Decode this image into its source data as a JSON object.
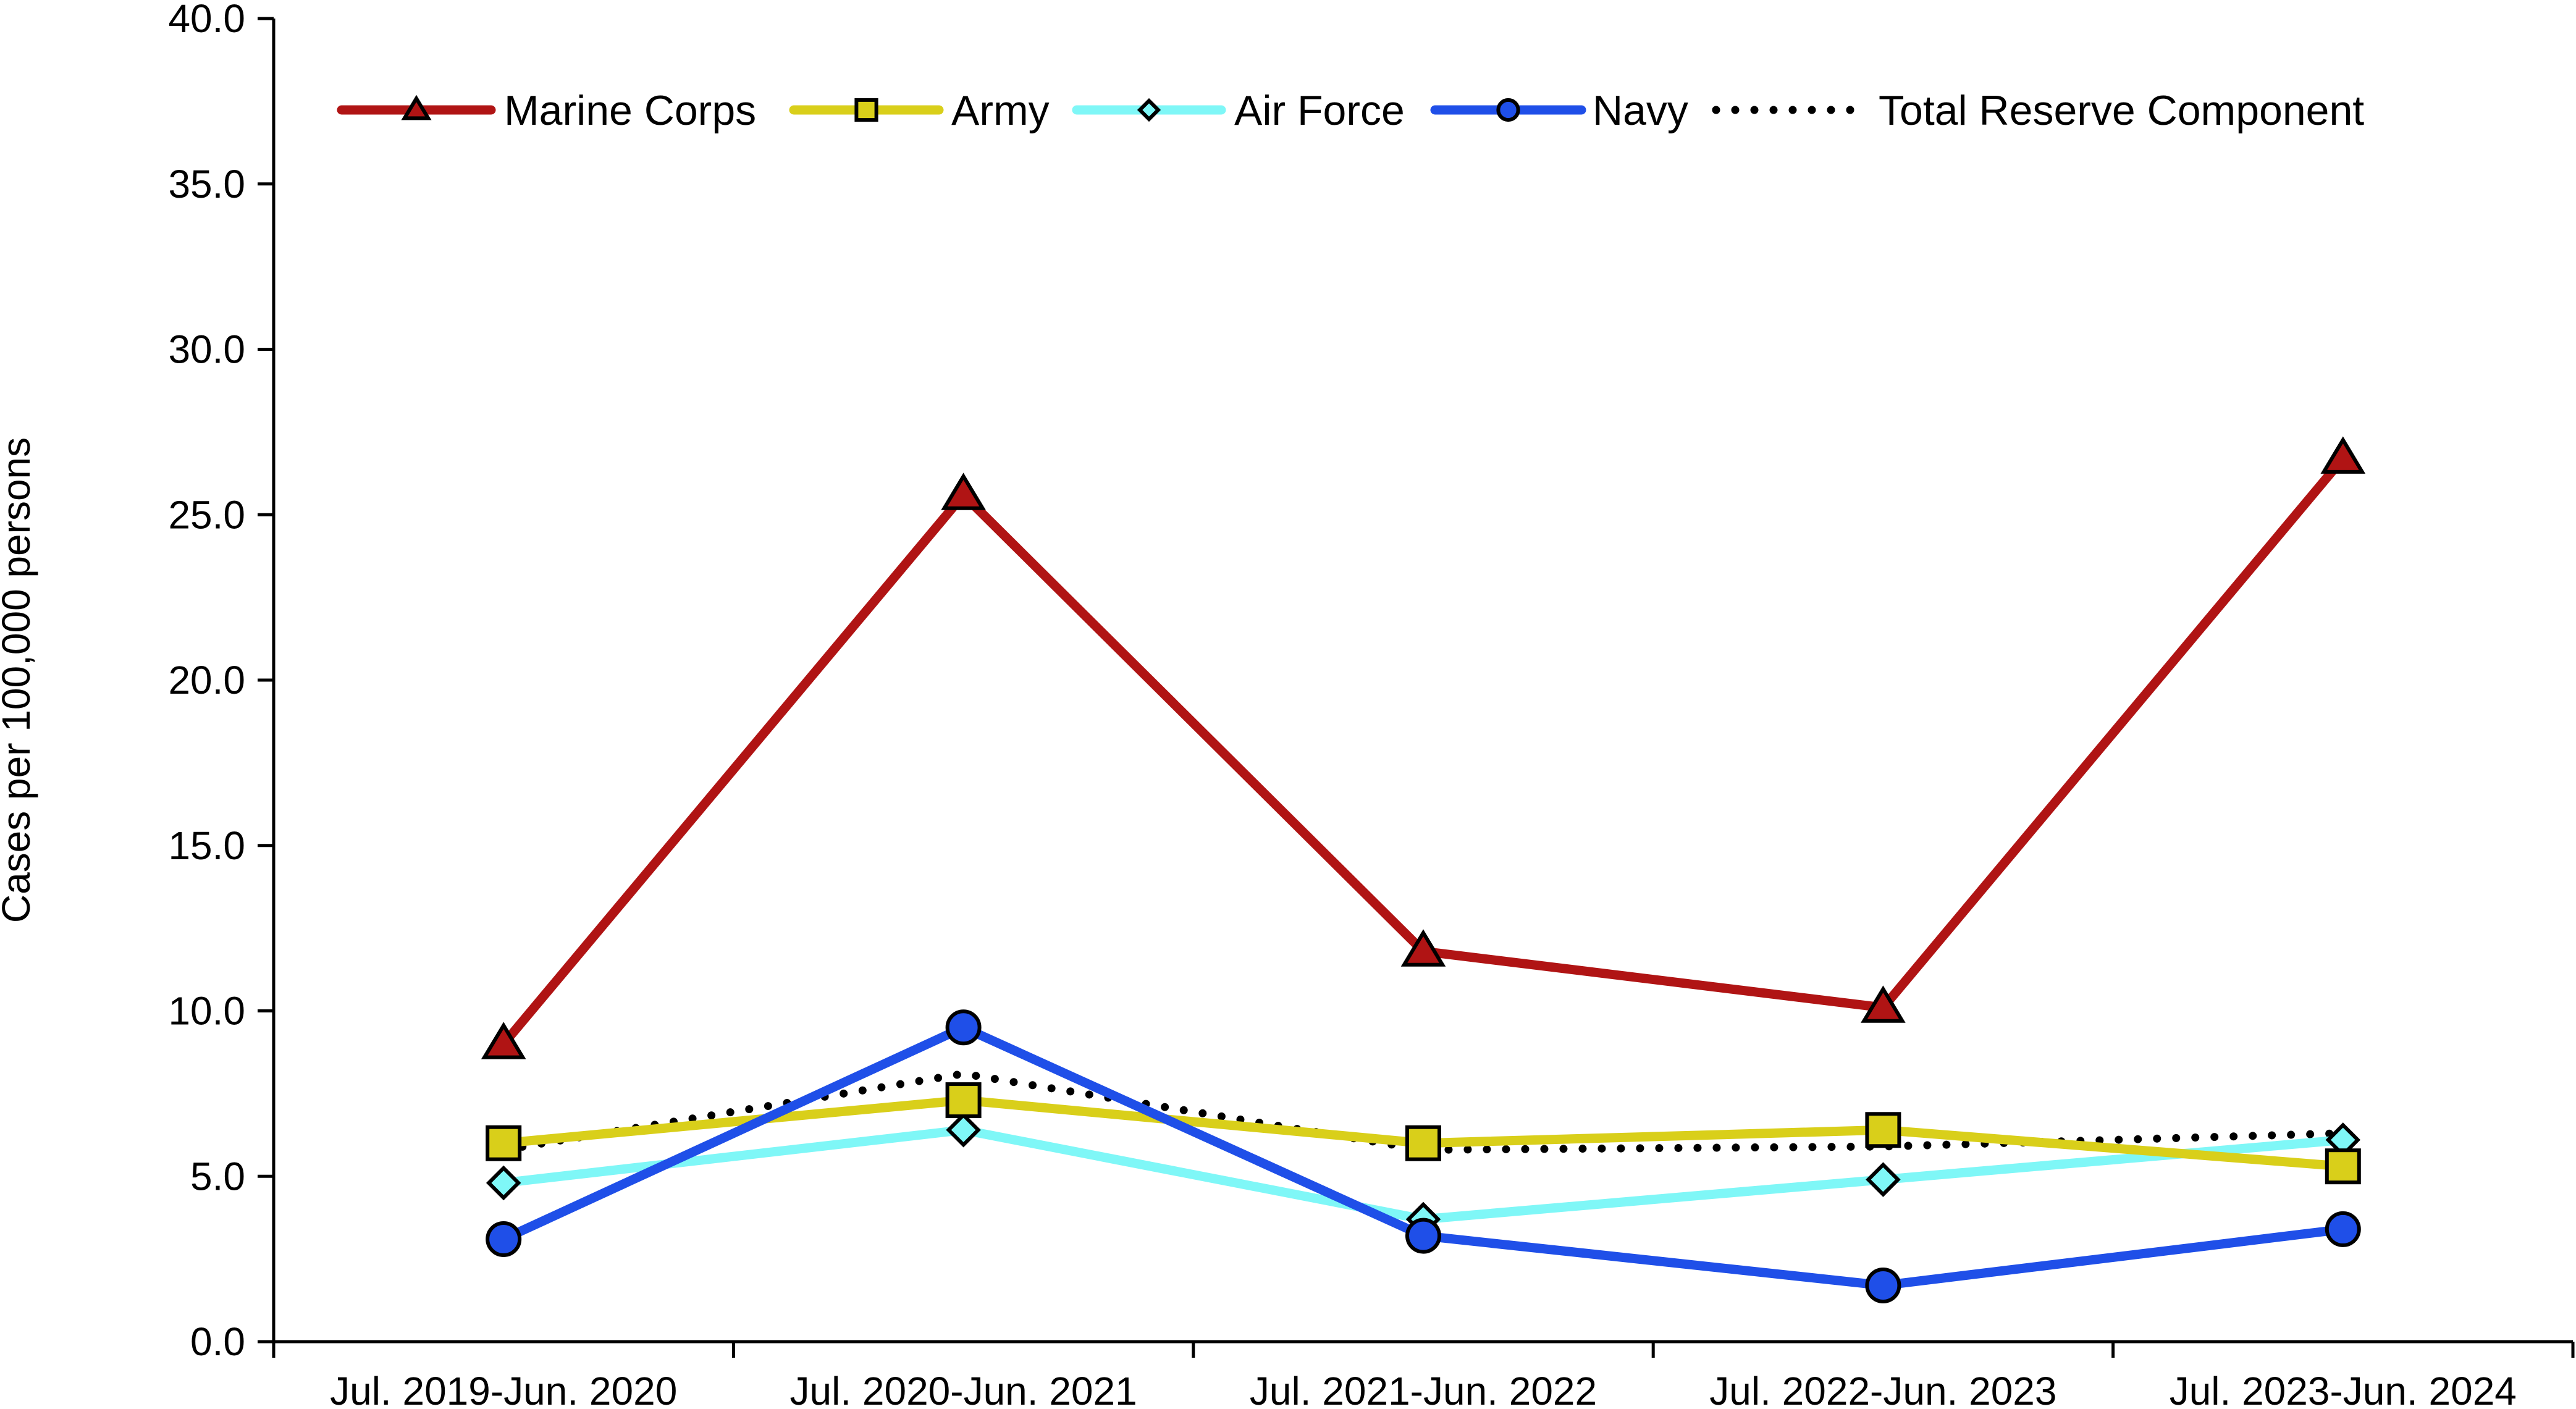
{
  "chart_data": {
    "type": "line",
    "title": "",
    "xlabel": "",
    "ylabel": "Cases per 100,000 persons",
    "ylim": [
      0,
      40
    ],
    "ytick_step": 5,
    "ytick_labels": [
      "0.0",
      "5.0",
      "10.0",
      "15.0",
      "20.0",
      "25.0",
      "30.0",
      "35.0",
      "40.0"
    ],
    "grid": false,
    "legend_position": "top",
    "categories": [
      "Jul. 2019-Jun. 2020",
      "Jul. 2020-Jun. 2021",
      "Jul. 2021-Jun. 2022",
      "Jul. 2022-Jun. 2023",
      "Jul. 2023-Jun. 2024"
    ],
    "series": [
      {
        "name": "Total Reserve Component",
        "values": [
          5.8,
          8.1,
          5.8,
          5.9,
          6.3
        ],
        "color": "#000000",
        "style": "dotted",
        "marker": "none"
      },
      {
        "name": "Air Force",
        "values": [
          4.8,
          6.4,
          3.7,
          4.9,
          6.1
        ],
        "color": "#7ff7f7",
        "style": "solid",
        "marker": "diamond"
      },
      {
        "name": "Army",
        "values": [
          6.0,
          7.3,
          6.0,
          6.4,
          5.3
        ],
        "color": "#d9cf1a",
        "style": "solid",
        "marker": "square"
      },
      {
        "name": "Navy",
        "values": [
          3.1,
          9.5,
          3.2,
          1.7,
          3.4
        ],
        "color": "#1f4fe8",
        "style": "solid",
        "marker": "circle"
      },
      {
        "name": "Marine Corps",
        "values": [
          9.0,
          25.6,
          11.8,
          10.1,
          26.7
        ],
        "color": "#b01414",
        "style": "solid",
        "marker": "triangle"
      }
    ],
    "legend": [
      "Marine Corps",
      "Army",
      "Air Force",
      "Navy",
      "Total Reserve Component"
    ]
  }
}
